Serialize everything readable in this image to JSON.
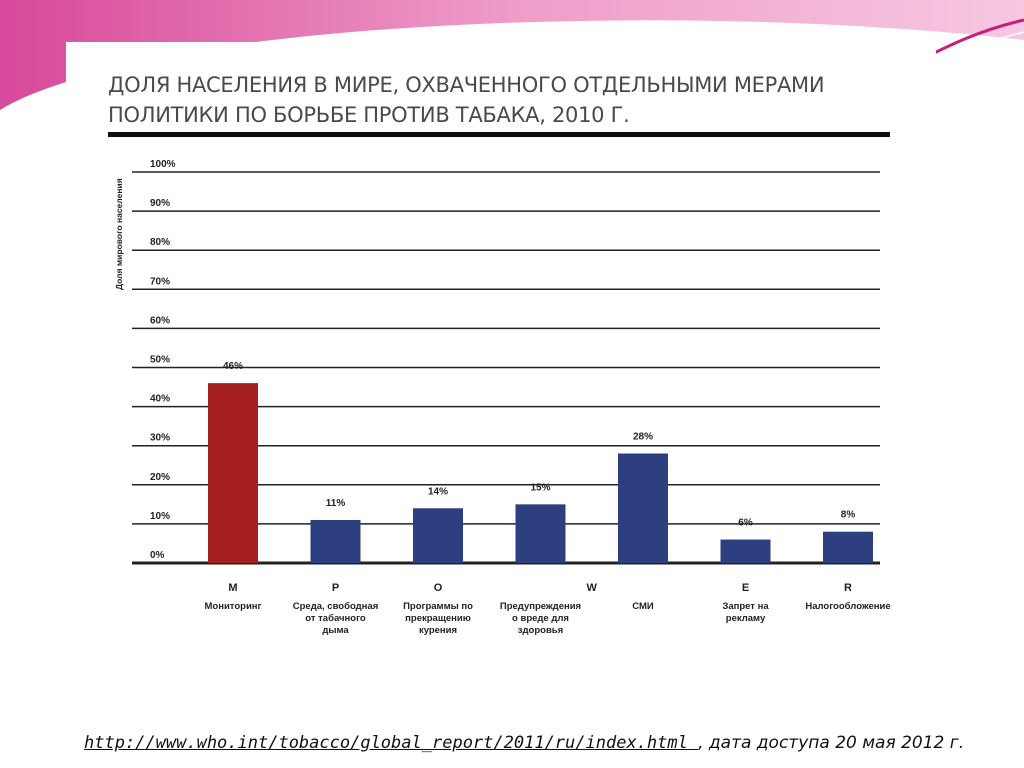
{
  "theme": {
    "accent": "#e2007a",
    "accent_light": "#f3a6cf",
    "bar_color": "#2e3f7f",
    "bar_highlight": "#a61f1f"
  },
  "footer": {
    "link": "http://www.who.int/tobacco/global_report/2011/ru/index.html ",
    "note": ", дата доступа 20 мая 2012 г."
  },
  "chart_data": {
    "type": "bar",
    "title": "ДОЛЯ НАСЕЛЕНИЯ В МИРЕ, ОХВАЧЕННОГО ОТДЕЛЬНЫМИ МЕРАМИ ПОЛИТИКИ ПО БОРЬБЕ ПРОТИВ ТАБАКА, 2010 Г.",
    "ylabel": "Доля мирового населения",
    "ylim": [
      0,
      100
    ],
    "yticks": [
      "0%",
      "10%",
      "20%",
      "30%",
      "40%",
      "50%",
      "60%",
      "70%",
      "80%",
      "90%",
      "100%"
    ],
    "grid": true,
    "categories": [
      {
        "code": "M",
        "label": [
          "Мониторинг"
        ]
      },
      {
        "code": "P",
        "label": [
          "Среда, свободная",
          "от табачного",
          "дыма"
        ]
      },
      {
        "code": "O",
        "label": [
          "Программы по",
          "прекращению",
          "курения"
        ]
      },
      {
        "code": "",
        "label": [
          "Предупреждения",
          "о вреде для",
          "здоровья"
        ]
      },
      {
        "code": "",
        "label": [
          "СМИ"
        ]
      },
      {
        "code": "E",
        "label": [
          "Запрет на",
          "рекламу"
        ]
      },
      {
        "code": "R",
        "label": [
          "Налогообложение"
        ]
      }
    ],
    "group_labels": [
      {
        "code": "W",
        "between": [
          3,
          4
        ]
      }
    ],
    "values": [
      46,
      11,
      14,
      15,
      28,
      6,
      8
    ],
    "value_labels": [
      "46%",
      "11%",
      "14%",
      "15%",
      "28%",
      "6%",
      "8%"
    ],
    "highlight_index": 0
  }
}
